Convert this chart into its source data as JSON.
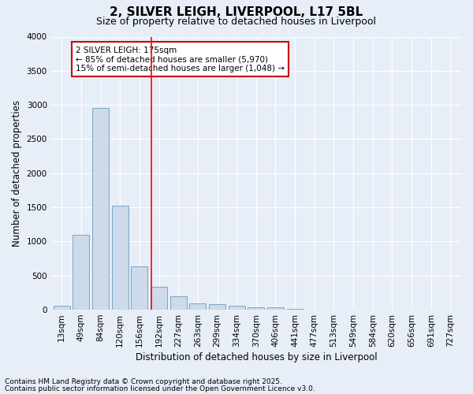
{
  "title": "2, SILVER LEIGH, LIVERPOOL, L17 5BL",
  "subtitle": "Size of property relative to detached houses in Liverpool",
  "xlabel": "Distribution of detached houses by size in Liverpool",
  "ylabel": "Number of detached properties",
  "bar_color": "#ccdaea",
  "bar_edge_color": "#6b9bbf",
  "categories": [
    "13sqm",
    "49sqm",
    "84sqm",
    "120sqm",
    "156sqm",
    "192sqm",
    "227sqm",
    "263sqm",
    "299sqm",
    "334sqm",
    "370sqm",
    "406sqm",
    "441sqm",
    "477sqm",
    "513sqm",
    "549sqm",
    "584sqm",
    "620sqm",
    "656sqm",
    "691sqm",
    "727sqm"
  ],
  "values": [
    60,
    1100,
    2960,
    1530,
    640,
    330,
    195,
    90,
    80,
    55,
    30,
    30,
    15,
    0,
    0,
    0,
    0,
    0,
    0,
    0,
    0
  ],
  "ylim": [
    0,
    4000
  ],
  "yticks": [
    0,
    500,
    1000,
    1500,
    2000,
    2500,
    3000,
    3500,
    4000
  ],
  "redline_x": 4.62,
  "annotation_title": "2 SILVER LEIGH: 175sqm",
  "annotation_line2": "← 85% of detached houses are smaller (5,970)",
  "annotation_line3": "15% of semi-detached houses are larger (1,048) →",
  "annotation_box_color": "#ffffff",
  "annotation_box_edge": "#cc0000",
  "footer1": "Contains HM Land Registry data © Crown copyright and database right 2025.",
  "footer2": "Contains public sector information licensed under the Open Government Licence v3.0.",
  "background_color": "#e8eef8",
  "plot_background_color": "#e8eef8",
  "grid_color": "#ffffff",
  "title_fontsize": 11,
  "subtitle_fontsize": 9,
  "axis_label_fontsize": 8.5,
  "tick_fontsize": 7.5,
  "annotation_fontsize": 7.5,
  "footer_fontsize": 6.5
}
